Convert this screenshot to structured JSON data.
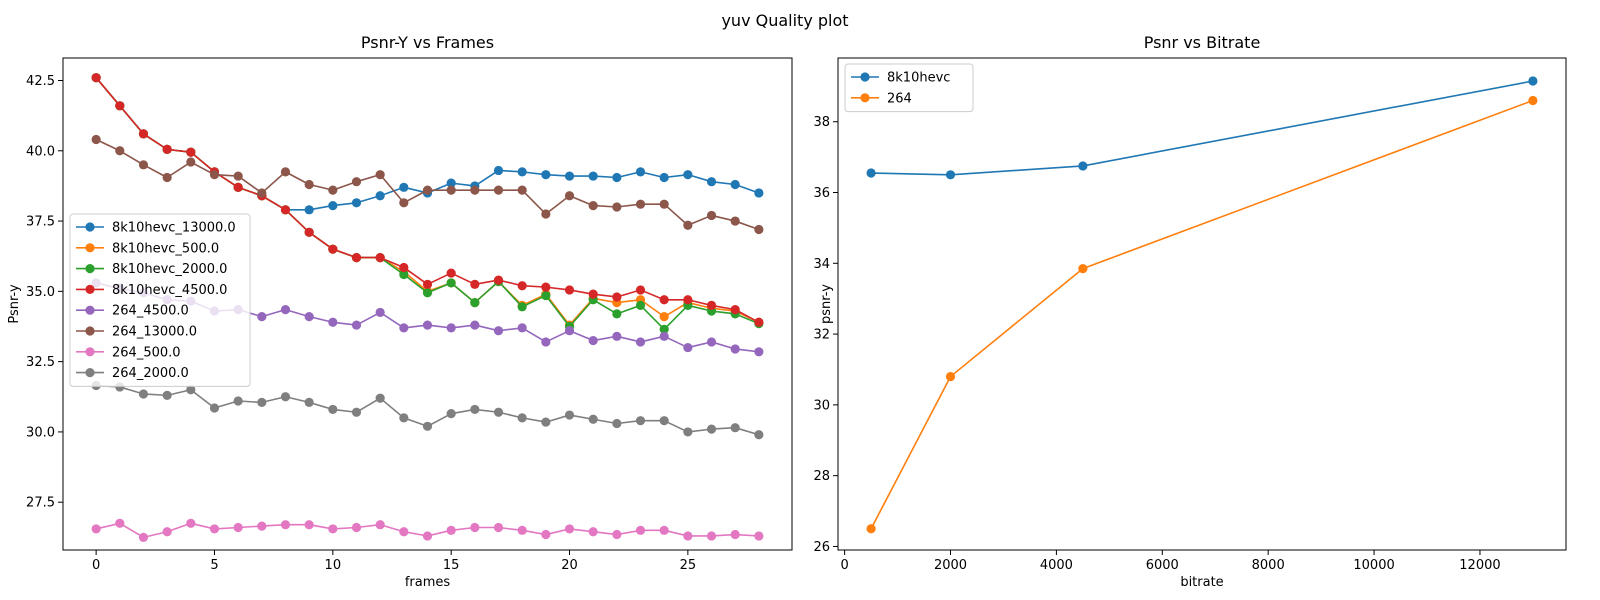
{
  "figure": {
    "suptitle": "yuv Quality plot"
  },
  "chart_data": [
    {
      "type": "line",
      "title": "Psnr-Y vs Frames",
      "xlabel": "frames",
      "ylabel": "Psnr-y",
      "xlim": [
        -1.4,
        29.4
      ],
      "ylim": [
        25.8,
        43.3
      ],
      "xticks": [
        0,
        5,
        10,
        15,
        20,
        25
      ],
      "xtick_labels": [
        "0",
        "5",
        "10",
        "15",
        "20",
        "25"
      ],
      "yticks": [
        27.5,
        30.0,
        32.5,
        35.0,
        37.5,
        40.0,
        42.5
      ],
      "ytick_labels": [
        "27.5",
        "30.0",
        "32.5",
        "35.0",
        "37.5",
        "40.0",
        "42.5"
      ],
      "grid": false,
      "legend_position": "center-left",
      "x": [
        0,
        1,
        2,
        3,
        4,
        5,
        6,
        7,
        8,
        9,
        10,
        11,
        12,
        13,
        14,
        15,
        16,
        17,
        18,
        19,
        20,
        21,
        22,
        23,
        24,
        25,
        26,
        27,
        28
      ],
      "series": [
        {
          "name": "8k10hevc_13000.0",
          "color": "#1f77b4",
          "values": [
            42.6,
            41.6,
            40.6,
            40.05,
            39.95,
            39.25,
            38.7,
            38.4,
            37.9,
            37.9,
            38.05,
            38.15,
            38.4,
            38.7,
            38.5,
            38.85,
            38.75,
            39.3,
            39.25,
            39.15,
            39.1,
            39.1,
            39.05,
            39.25,
            39.05,
            39.15,
            38.9,
            38.8,
            38.5
          ]
        },
        {
          "name": "8k10hevc_500.0",
          "color": "#ff7f0e",
          "values": [
            42.6,
            41.6,
            40.6,
            40.05,
            39.95,
            39.25,
            38.7,
            38.4,
            37.9,
            37.1,
            36.5,
            36.2,
            36.2,
            35.7,
            35.0,
            35.3,
            34.6,
            35.35,
            34.5,
            34.9,
            33.8,
            34.75,
            34.6,
            34.7,
            34.1,
            34.6,
            34.4,
            34.3,
            33.9
          ]
        },
        {
          "name": "8k10hevc_2000.0",
          "color": "#2ca02c",
          "values": [
            42.6,
            41.6,
            40.6,
            40.05,
            39.95,
            39.25,
            38.7,
            38.4,
            37.9,
            37.1,
            36.5,
            36.2,
            36.2,
            35.6,
            34.95,
            35.3,
            34.6,
            35.35,
            34.45,
            34.85,
            33.75,
            34.7,
            34.2,
            34.5,
            33.65,
            34.5,
            34.3,
            34.2,
            33.85
          ]
        },
        {
          "name": "8k10hevc_4500.0",
          "color": "#d62728",
          "values": [
            42.6,
            41.6,
            40.6,
            40.05,
            39.95,
            39.25,
            38.7,
            38.4,
            37.9,
            37.1,
            36.5,
            36.2,
            36.2,
            35.85,
            35.25,
            35.65,
            35.25,
            35.4,
            35.2,
            35.15,
            35.05,
            34.9,
            34.8,
            35.05,
            34.7,
            34.7,
            34.5,
            34.35,
            33.9
          ]
        },
        {
          "name": "264_4500.0",
          "color": "#9467bd",
          "values": [
            35.3,
            35.1,
            34.95,
            34.7,
            34.65,
            34.3,
            34.35,
            34.1,
            34.35,
            34.1,
            33.9,
            33.8,
            34.25,
            33.7,
            33.8,
            33.7,
            33.8,
            33.6,
            33.7,
            33.2,
            33.6,
            33.25,
            33.4,
            33.2,
            33.4,
            33.0,
            33.2,
            32.95,
            32.85
          ]
        },
        {
          "name": "264_13000.0",
          "color": "#8c564b",
          "values": [
            40.4,
            40.0,
            39.5,
            39.05,
            39.6,
            39.15,
            39.1,
            38.5,
            39.25,
            38.8,
            38.6,
            38.9,
            39.15,
            38.15,
            38.6,
            38.6,
            38.6,
            38.6,
            38.6,
            37.75,
            38.4,
            38.05,
            38.0,
            38.1,
            38.1,
            37.35,
            37.7,
            37.5,
            37.2
          ]
        },
        {
          "name": "264_500.0",
          "color": "#e377c2",
          "values": [
            26.55,
            26.75,
            26.25,
            26.45,
            26.75,
            26.55,
            26.6,
            26.65,
            26.7,
            26.7,
            26.55,
            26.6,
            26.7,
            26.45,
            26.3,
            26.5,
            26.6,
            26.6,
            26.5,
            26.35,
            26.55,
            26.45,
            26.35,
            26.5,
            26.5,
            26.3,
            26.3,
            26.35,
            26.3
          ]
        },
        {
          "name": "264_2000.0",
          "color": "#7f7f7f",
          "values": [
            31.65,
            31.6,
            31.35,
            31.3,
            31.5,
            30.85,
            31.1,
            31.05,
            31.25,
            31.05,
            30.8,
            30.7,
            31.2,
            30.5,
            30.2,
            30.65,
            30.8,
            30.7,
            30.5,
            30.35,
            30.6,
            30.45,
            30.3,
            30.4,
            30.4,
            30.0,
            30.1,
            30.15,
            29.9
          ]
        }
      ]
    },
    {
      "type": "line",
      "title": "Psnr vs Bitrate",
      "xlabel": "bitrate",
      "ylabel": "psnr-y",
      "xlim": [
        -125,
        13625
      ],
      "ylim": [
        25.9,
        39.8
      ],
      "xticks": [
        0,
        2000,
        4000,
        6000,
        8000,
        10000,
        12000
      ],
      "xtick_labels": [
        "0",
        "2000",
        "4000",
        "6000",
        "8000",
        "10000",
        "12000"
      ],
      "yticks": [
        26,
        28,
        30,
        32,
        34,
        36,
        38
      ],
      "ytick_labels": [
        "26",
        "28",
        "30",
        "32",
        "34",
        "36",
        "38"
      ],
      "grid": false,
      "legend_position": "upper-left",
      "x": [
        500,
        2000,
        4500,
        13000
      ],
      "series": [
        {
          "name": "8k10hevc",
          "color": "#1f77b4",
          "values": [
            36.55,
            36.5,
            36.75,
            39.15
          ]
        },
        {
          "name": "264",
          "color": "#ff7f0e",
          "values": [
            26.5,
            30.8,
            33.85,
            38.6
          ]
        }
      ]
    }
  ]
}
